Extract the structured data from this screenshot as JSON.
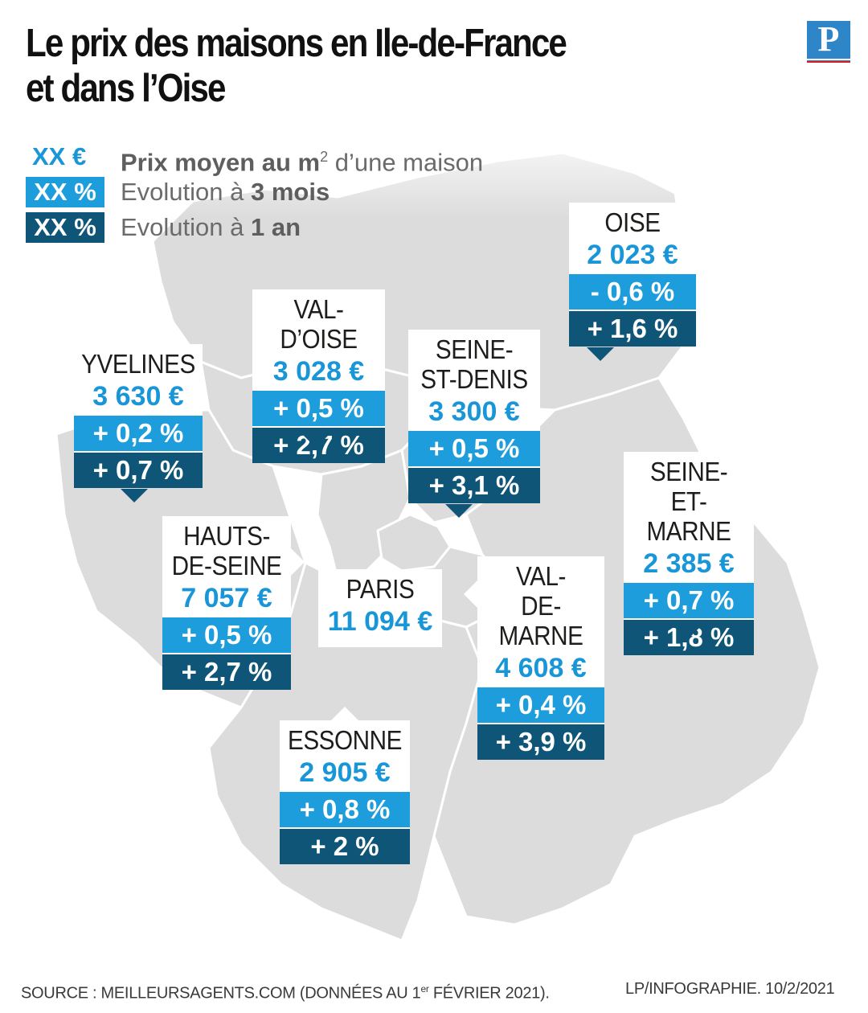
{
  "title": {
    "line1": "Le prix des maisons en Ile-de-France",
    "line2": "et dans l’Oise"
  },
  "logo": {
    "letter": "P"
  },
  "legend": {
    "price_chip": "XX €",
    "three_month_chip": "XX %",
    "one_year_chip": "XX %",
    "price_text_bold": "Prix moyen au m",
    "price_text_sup": "2",
    "price_text_rest": " d’une maison",
    "three_month_text": "Evolution à ",
    "three_month_bold": "3 mois",
    "one_year_text": "Evolution à ",
    "one_year_bold": "1 an"
  },
  "departments": {
    "oise": {
      "name": "OISE",
      "price": "2 023 €",
      "three_month": "- 0,6 %",
      "one_year": "+ 1,6 %"
    },
    "val_doise": {
      "name": "VAL-D’OISE",
      "price": "3 028 €",
      "three_month": "+ 0,5 %",
      "one_year": "+ 2,7 %"
    },
    "yvelines": {
      "name": "YVELINES",
      "price": "3 630 €",
      "three_month": "+ 0,2 %",
      "one_year": "+ 0,7 %"
    },
    "seine_st_denis": {
      "name_line1": "SEINE-",
      "name_line2": "ST-DENIS",
      "price": "3 300 €",
      "three_month": "+ 0,5 %",
      "one_year": "+ 3,1 %"
    },
    "seine_et_marne": {
      "name_line1": "SEINE-",
      "name_line2": "ET-MARNE",
      "price": "2 385 €",
      "three_month": "+ 0,7 %",
      "one_year": "+ 1,8 %"
    },
    "hauts_de_seine": {
      "name_line1": "HAUTS-",
      "name_line2": "DE-SEINE",
      "price": "7 057 €",
      "three_month": "+ 0,5 %",
      "one_year": "+ 2,7 %"
    },
    "paris": {
      "name": "PARIS",
      "price": "11 094 €"
    },
    "val_de_marne": {
      "name_line1": "VAL-",
      "name_line2": "DE-MARNE",
      "price": "4 608 €",
      "three_month": "+ 0,4 %",
      "one_year": "+ 3,9 %"
    },
    "essonne": {
      "name": "ESSONNE",
      "price": "2 905 €",
      "three_month": "+ 0,8 %",
      "one_year": "+ 2 %"
    }
  },
  "footer": {
    "source": "SOURCE : MEILLEURSAGENTS.COM (DONNÉES AU 1",
    "source_sup": "er",
    "source_end": " FÉVRIER 2021).",
    "credit": "LP/INFOGRAPHIE. 10/2/2021"
  },
  "colors": {
    "price_blue": "#1996d8",
    "three_month_bg": "#1d9ddc",
    "one_year_bg": "#0e5577",
    "map_fill": "#dcdcdd",
    "map_border": "#ffffff"
  }
}
